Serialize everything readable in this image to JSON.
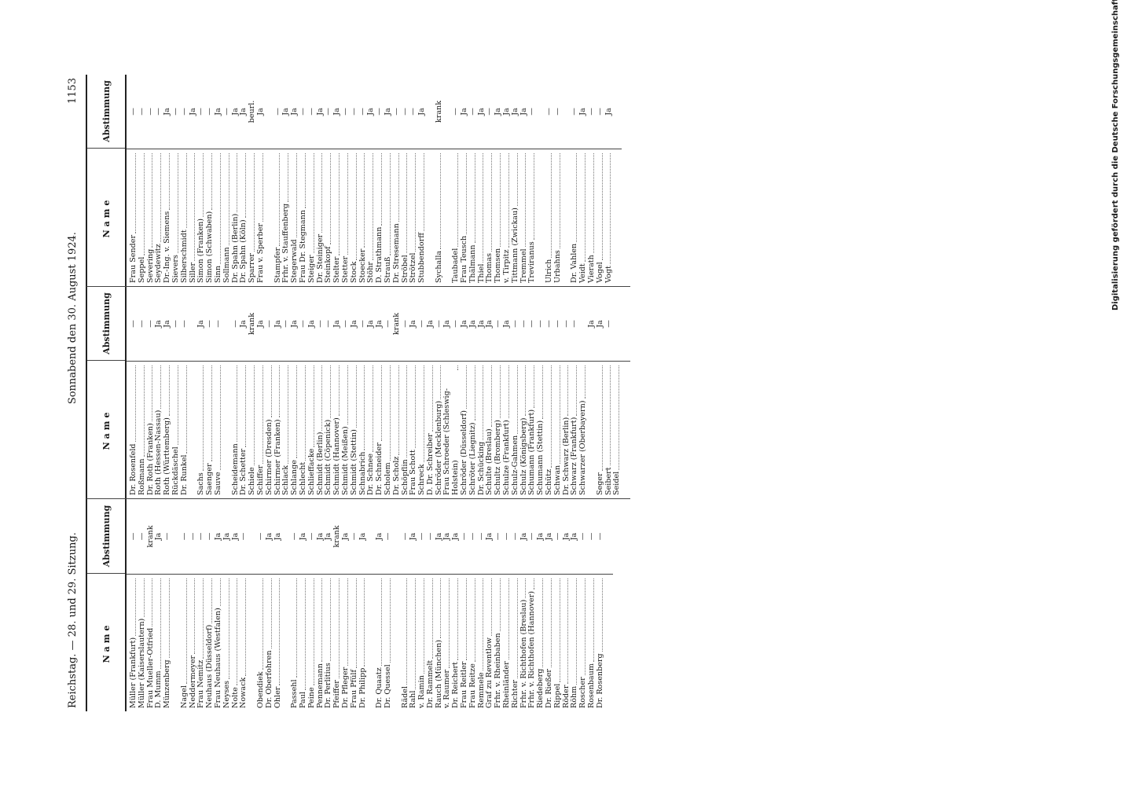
{
  "header": {
    "left": "Reichstag. — 28. und 29. Sitzung.",
    "center": "Sonnabend den 30. August 1924.",
    "page": "1153"
  },
  "column_headings": {
    "name": "Name",
    "vote": "Abstimmung"
  },
  "footer_note": "Digitalisierung gefördert durch die Deutsche Forschungsgemeinschaft · DFG",
  "columns": [
    [
      [
        {
          "name": "Müller (Frankfurt)",
          "vote": "—"
        },
        {
          "name": "Müller (Kaiserslautern)",
          "vote": "—"
        },
        {
          "name": "Frau Mueller-Otfried",
          "vote": "krank"
        },
        {
          "name": "D. Mumm",
          "vote": "Ja"
        },
        {
          "name": "Münzenberg",
          "vote": "—"
        }
      ],
      [
        {
          "name": "Nagel",
          "vote": "—"
        },
        {
          "name": "Neddermeyer",
          "vote": "—"
        },
        {
          "name": "Frau Nemitz",
          "vote": "—"
        },
        {
          "name": "Neuhaus (Düsseldorf)",
          "vote": "—"
        },
        {
          "name": "Frau Neuhaus (Westfalen)",
          "vote": "Ja"
        },
        {
          "name": "Neyses",
          "vote": "Ja"
        },
        {
          "name": "Nolte",
          "vote": "Ja"
        },
        {
          "name": "Nowack",
          "vote": "—"
        }
      ],
      [
        {
          "name": "Obendiek",
          "vote": "—"
        },
        {
          "name": "Dr. Oberfohren",
          "vote": "Ja"
        },
        {
          "name": "Ohler",
          "vote": "Ja"
        }
      ],
      [
        {
          "name": "Passehl",
          "vote": "—"
        },
        {
          "name": "Paul",
          "vote": "Ja"
        },
        {
          "name": "Peine",
          "vote": "—"
        },
        {
          "name": "Pennemann",
          "vote": "Ja"
        },
        {
          "name": "Dr. Perlitius",
          "vote": "Ja"
        },
        {
          "name": "Pfeiffer",
          "vote": "krank"
        },
        {
          "name": "Dr. Pfleger",
          "vote": "Ja"
        },
        {
          "name": "Frau Pfülf",
          "vote": "—"
        },
        {
          "name": "Dr. Philipp",
          "vote": "Ja"
        }
      ],
      [
        {
          "name": "Dr. Quaatz",
          "vote": "Ja"
        },
        {
          "name": "Dr. Quessel",
          "vote": "—"
        }
      ],
      [
        {
          "name": "Rädel",
          "vote": "—"
        },
        {
          "name": "Rahl",
          "vote": "Ja"
        },
        {
          "name": "v. Ramin",
          "vote": "—"
        },
        {
          "name": "Dr. Rammelt",
          "vote": "—"
        },
        {
          "name": "Rauch (München)",
          "vote": "Ja"
        },
        {
          "name": "v. Raumer",
          "vote": "Ja"
        },
        {
          "name": "Dr. Reichert",
          "vote": "Ja"
        },
        {
          "name": "Frau Reitler",
          "vote": "—"
        },
        {
          "name": "Frau Reitze",
          "vote": "—"
        },
        {
          "name": "Remmele",
          "vote": "—"
        },
        {
          "name": "Graf zu Reventlow",
          "vote": "Ja"
        },
        {
          "name": "Frhr. v. Rheinbaben",
          "vote": "—"
        },
        {
          "name": "Rheinländer",
          "vote": "—"
        },
        {
          "name": "Richter",
          "vote": "—"
        },
        {
          "name": "Frhr. v. Richthofen (Breslau)",
          "vote": "Ja"
        },
        {
          "name": "Frhr. v. Richthofen (Hannover)",
          "vote": "—"
        },
        {
          "name": "Riedeberg",
          "vote": "Ja"
        },
        {
          "name": "Dr. Rießer",
          "vote": "Ja"
        },
        {
          "name": "Rippel",
          "vote": "—"
        },
        {
          "name": "Röder",
          "vote": "Ja"
        },
        {
          "name": "Röhm",
          "vote": "Ja"
        },
        {
          "name": "Roscher",
          "vote": "—"
        },
        {
          "name": "Rosenbaum",
          "vote": "—"
        },
        {
          "name": "Dr. Rosenberg",
          "vote": "—"
        }
      ]
    ],
    [
      [
        {
          "name": "Dr. Rosenfeld",
          "vote": "—"
        },
        {
          "name": "Roßmann",
          "vote": "—"
        },
        {
          "name": "Dr. Roth (Franken)",
          "vote": "—"
        },
        {
          "name": "Roth (Hessen-Nassau)",
          "vote": "Ja"
        },
        {
          "name": "Roth (Württemberg)",
          "vote": "Ja"
        },
        {
          "name": "Rückdäschel",
          "vote": "—"
        },
        {
          "name": "Dr. Runkel",
          "vote": "—"
        }
      ],
      [
        {
          "name": "Sachs",
          "vote": "Ja"
        },
        {
          "name": "Saenger",
          "vote": "—"
        },
        {
          "name": "Sauve",
          "vote": "—"
        }
      ],
      [
        {
          "name": "Scheidemann",
          "vote": "—"
        },
        {
          "name": "Dr. Schetter",
          "vote": "Ja"
        },
        {
          "name": "Schiele",
          "vote": "krank"
        },
        {
          "name": "Schiffer",
          "vote": "Ja"
        },
        {
          "name": "Schirmer (Dresden)",
          "vote": "—"
        },
        {
          "name": "Schirmer (Franken)",
          "vote": "Ja"
        },
        {
          "name": "Schlack",
          "vote": "—"
        },
        {
          "name": "Schlange",
          "vote": "Ja"
        },
        {
          "name": "Schlecht",
          "vote": "—"
        },
        {
          "name": "Schlieffacke",
          "vote": "Ja"
        },
        {
          "name": "Schmidt (Berlin)",
          "vote": "—"
        },
        {
          "name": "Schmidt (Cöpenick)",
          "vote": "—"
        },
        {
          "name": "Schmidt (Hannover)",
          "vote": "Ja"
        },
        {
          "name": "Schmidt (Meißen)",
          "vote": "—"
        },
        {
          "name": "Schmidt (Stettin)",
          "vote": "Ja"
        },
        {
          "name": "Schnabrich",
          "vote": "—"
        },
        {
          "name": "Dr. Schnee",
          "vote": "Ja"
        },
        {
          "name": "Dr. Schneider",
          "vote": "Ja"
        },
        {
          "name": "Scholem",
          "vote": "—"
        },
        {
          "name": "Dr. Scholz",
          "vote": "krank"
        },
        {
          "name": "Schöpflin",
          "vote": "—"
        },
        {
          "name": "Frau Schott",
          "vote": "Ja"
        },
        {
          "name": "Schreck",
          "vote": "—"
        },
        {
          "name": "D. Dr. Schreiber",
          "vote": "Ja"
        },
        {
          "name": "Schröder (Mecklenburg)",
          "vote": "—"
        },
        {
          "name": "Frau Schroeder (Schleswig-Holstein)",
          "vote": "Ja"
        },
        {
          "name": "Schröder (Düsseldorf)",
          "vote": "—"
        },
        {
          "name": "Schröter (Liegnitz)",
          "vote": "Ja"
        },
        {
          "name": "Dr. Schücking",
          "vote": "Ja"
        },
        {
          "name": "Schulte (Breslau)",
          "vote": "Ja"
        },
        {
          "name": "Schultz (Bromberg)",
          "vote": "Ja"
        },
        {
          "name": "Schulze (Frankfurt)",
          "vote": "—"
        },
        {
          "name": "Schulz-Gahmen",
          "vote": "Ja"
        },
        {
          "name": "Schulz (Königsberg)",
          "vote": "—"
        },
        {
          "name": "Schumann (Frankfurt)",
          "vote": "—"
        },
        {
          "name": "Schumann (Stettin)",
          "vote": "—"
        },
        {
          "name": "Schütz",
          "vote": "—"
        },
        {
          "name": "Schwan",
          "vote": "—"
        },
        {
          "name": "Dr. Schwarz (Berlin)",
          "vote": "—"
        },
        {
          "name": "Schwarz (Frankfurt)",
          "vote": "—"
        },
        {
          "name": "Schwarzer (Oberbayern)",
          "vote": "—"
        }
      ],
      [
        {
          "name": "Seger",
          "vote": "Ja"
        },
        {
          "name": "Seibert",
          "vote": "Ja"
        },
        {
          "name": "Seidel",
          "vote": "—"
        }
      ]
    ],
    [
      [
        {
          "name": "Frau Sender",
          "vote": "—"
        },
        {
          "name": "Seppel",
          "vote": "—"
        },
        {
          "name": "Severing",
          "vote": "—"
        },
        {
          "name": "Seydewitz",
          "vote": "—"
        },
        {
          "name": "Dr.-Ing. v. Siemens",
          "vote": "Ja"
        },
        {
          "name": "Sievers",
          "vote": "—"
        },
        {
          "name": "Silberschmidt",
          "vote": "—"
        },
        {
          "name": "Siller",
          "vote": "Ja"
        },
        {
          "name": "Simon (Franken)",
          "vote": "—"
        },
        {
          "name": "Simon (Schwaben)",
          "vote": "—"
        },
        {
          "name": "Sinn",
          "vote": "Ja"
        },
        {
          "name": "Sollmann",
          "vote": "—"
        },
        {
          "name": "Dr. Spahn (Berlin)",
          "vote": "Ja"
        },
        {
          "name": "Dr. Spahn (Köln)",
          "vote": "Ja"
        },
        {
          "name": "Sparrer",
          "vote": "beurl."
        },
        {
          "name": "Frau v. Sperber",
          "vote": "Ja"
        }
      ],
      [
        {
          "name": "Stampfer",
          "vote": "—"
        },
        {
          "name": "Frhr. v. Stauffenberg",
          "vote": "Ja"
        },
        {
          "name": "Stegerwald",
          "vote": "Ja"
        },
        {
          "name": "Frau Dr. Stegmann",
          "vote": "—"
        },
        {
          "name": "Steiger",
          "vote": "—"
        },
        {
          "name": "Dr. Steiniger",
          "vote": "Ja"
        },
        {
          "name": "Steinkopf",
          "vote": "—"
        },
        {
          "name": "Stelter",
          "vote": "Ja"
        },
        {
          "name": "Stetter",
          "vote": "—"
        },
        {
          "name": "Stock",
          "vote": "—"
        },
        {
          "name": "Stoecker",
          "vote": "—"
        },
        {
          "name": "Stöhr",
          "vote": "Ja"
        },
        {
          "name": "D. Strathmann",
          "vote": "—"
        },
        {
          "name": "Strauß",
          "vote": "Ja"
        },
        {
          "name": "Dr. Stresemann",
          "vote": "—"
        },
        {
          "name": "Ströbel",
          "vote": "—"
        },
        {
          "name": "Strötzel",
          "vote": "—"
        },
        {
          "name": "Stubbendorff",
          "vote": "Ja"
        }
      ],
      [
        {
          "name": "Sychalla",
          "vote": "krank"
        }
      ],
      [
        {
          "name": "Taubadel",
          "vote": "—"
        },
        {
          "name": "Frau Teusch",
          "vote": "Ja"
        },
        {
          "name": "Thälmann",
          "vote": "—"
        },
        {
          "name": "Thiel",
          "vote": "Ja"
        },
        {
          "name": "Thomas",
          "vote": "—"
        },
        {
          "name": "Thomsen",
          "vote": "Ja"
        },
        {
          "name": "v. Tirpitz",
          "vote": "Ja"
        },
        {
          "name": "Tittmann (Zwickau)",
          "vote": "Ja"
        },
        {
          "name": "Tremmel",
          "vote": "Ja"
        },
        {
          "name": "Treviranus",
          "vote": "—"
        }
      ],
      [
        {
          "name": "Ulrich",
          "vote": "—"
        },
        {
          "name": "Urbahns",
          "vote": "—"
        }
      ],
      [
        {
          "name": "Dr. Vahlen",
          "vote": "—"
        },
        {
          "name": "Veidt",
          "vote": "Ja"
        },
        {
          "name": "Vierath",
          "vote": "—"
        },
        {
          "name": "Vogel",
          "vote": "—"
        },
        {
          "name": "Vogt",
          "vote": "Ja"
        }
      ]
    ]
  ]
}
